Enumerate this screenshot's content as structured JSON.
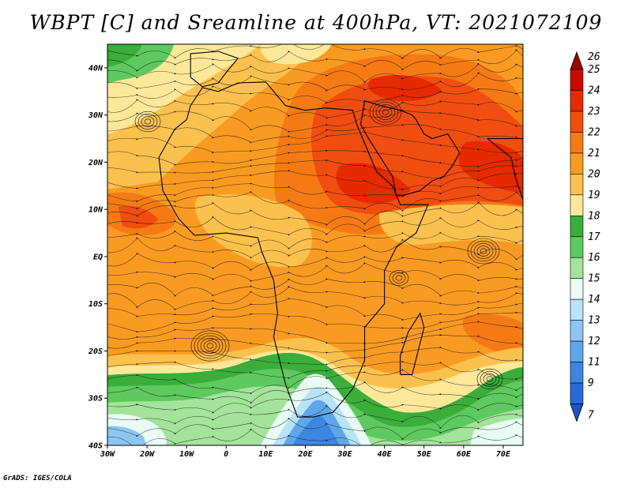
{
  "title": "WBPT [C] and Sreamline at 400hPa, VT: 2021072109",
  "credit": "GrADS: IGES/COLA",
  "map": {
    "lon_range": [
      -30,
      75
    ],
    "lat_range": [
      -40,
      45
    ],
    "lat_ticks": [
      {
        "value": 40,
        "label": "40N"
      },
      {
        "value": 30,
        "label": "30N"
      },
      {
        "value": 20,
        "label": "20N"
      },
      {
        "value": 10,
        "label": "10N"
      },
      {
        "value": 0,
        "label": "EQ"
      },
      {
        "value": -10,
        "label": "10S"
      },
      {
        "value": -20,
        "label": "20S"
      },
      {
        "value": -30,
        "label": "30S"
      },
      {
        "value": -40,
        "label": "40S"
      }
    ],
    "lon_ticks": [
      {
        "value": -30,
        "label": "30W"
      },
      {
        "value": -20,
        "label": "20W"
      },
      {
        "value": -10,
        "label": "10W"
      },
      {
        "value": 0,
        "label": "0"
      },
      {
        "value": 10,
        "label": "10E"
      },
      {
        "value": 20,
        "label": "20E"
      },
      {
        "value": 30,
        "label": "30E"
      },
      {
        "value": 40,
        "label": "40E"
      },
      {
        "value": 50,
        "label": "50E"
      },
      {
        "value": 60,
        "label": "60E"
      },
      {
        "value": 70,
        "label": "70E"
      }
    ]
  },
  "colorbar": {
    "levels": [
      {
        "label": "26",
        "color": "#a50000"
      },
      {
        "label": "25",
        "color": "#c80a00"
      },
      {
        "label": "24",
        "color": "#e62a00"
      },
      {
        "label": "23",
        "color": "#f04d10"
      },
      {
        "label": "22",
        "color": "#f57a14"
      },
      {
        "label": "21",
        "color": "#f99b22"
      },
      {
        "label": "20",
        "color": "#fbc14e"
      },
      {
        "label": "19",
        "color": "#fde89a"
      },
      {
        "label": "18",
        "color": "#3aad3a"
      },
      {
        "label": "17",
        "color": "#5ec95e"
      },
      {
        "label": "16",
        "color": "#a3e39a"
      },
      {
        "label": "15",
        "color": "#e8fbf4"
      },
      {
        "label": "14",
        "color": "#b8e3f8"
      },
      {
        "label": "13",
        "color": "#8ec6f2"
      },
      {
        "label": "12",
        "color": "#5fa6ea"
      },
      {
        "label": "11",
        "color": "#3d86e0"
      },
      {
        "label": "9",
        "color": "#2a6ad6"
      },
      {
        "label": "7",
        "color": "#1e52c8"
      }
    ]
  }
}
